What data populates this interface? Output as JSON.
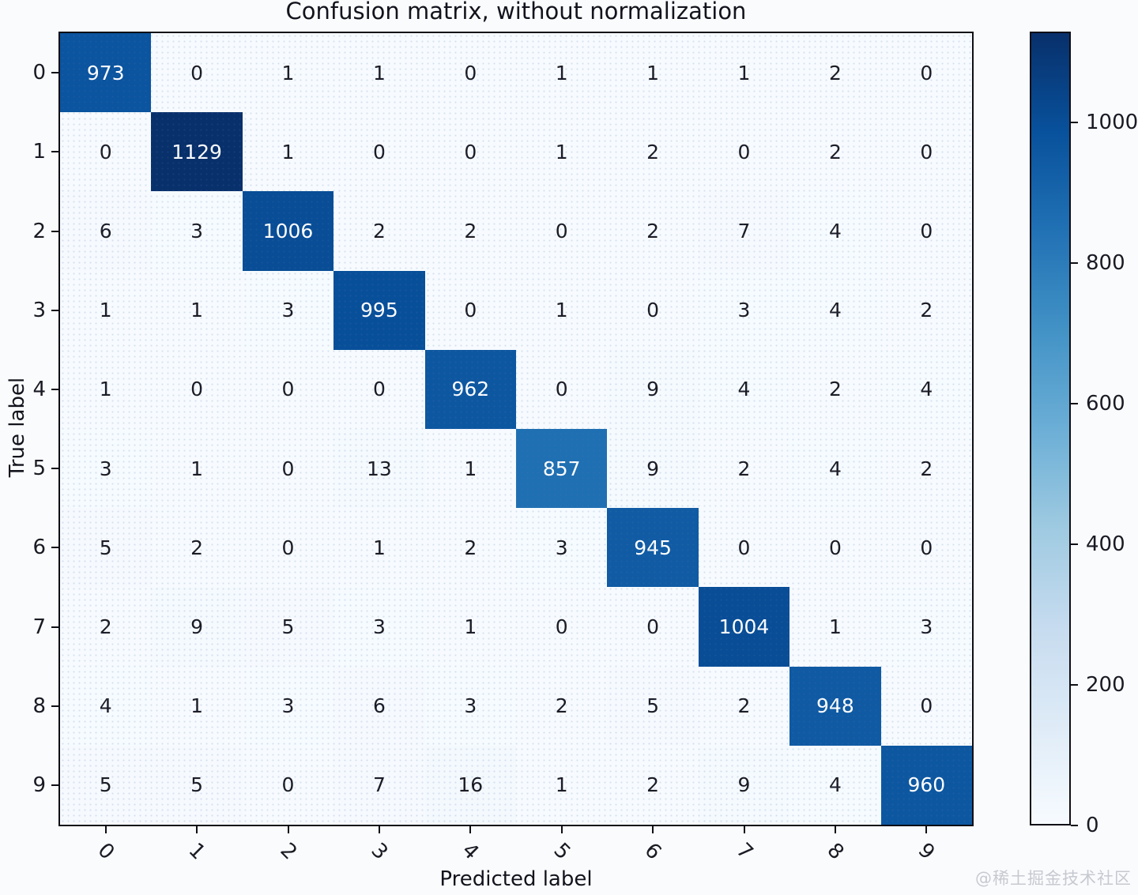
{
  "figure": {
    "watermark": "@稀土掘金技术社区"
  },
  "chart_data": {
    "type": "heatmap",
    "title": "Confusion matrix, without normalization",
    "xlabel": "Predicted label",
    "ylabel": "True label",
    "x_tick_labels": [
      "0",
      "1",
      "2",
      "3",
      "4",
      "5",
      "6",
      "7",
      "8",
      "9"
    ],
    "y_tick_labels": [
      "0",
      "1",
      "2",
      "3",
      "4",
      "5",
      "6",
      "7",
      "8",
      "9"
    ],
    "matrix": [
      [
        973,
        0,
        1,
        1,
        0,
        1,
        1,
        1,
        2,
        0
      ],
      [
        0,
        1129,
        1,
        0,
        0,
        1,
        2,
        0,
        2,
        0
      ],
      [
        6,
        3,
        1006,
        2,
        2,
        0,
        2,
        7,
        4,
        0
      ],
      [
        1,
        1,
        3,
        995,
        0,
        1,
        0,
        3,
        4,
        2
      ],
      [
        1,
        0,
        0,
        0,
        962,
        0,
        9,
        4,
        2,
        4
      ],
      [
        3,
        1,
        0,
        13,
        1,
        857,
        9,
        2,
        4,
        2
      ],
      [
        5,
        2,
        0,
        1,
        2,
        3,
        945,
        0,
        0,
        0
      ],
      [
        2,
        9,
        5,
        3,
        1,
        0,
        0,
        1004,
        1,
        3
      ],
      [
        4,
        1,
        3,
        6,
        3,
        2,
        5,
        2,
        948,
        0
      ],
      [
        5,
        5,
        0,
        7,
        16,
        1,
        2,
        9,
        4,
        960
      ]
    ],
    "vmin": 0,
    "vmax": 1129,
    "colormap": "Blues",
    "colormap_stops": [
      [
        0.0,
        "#f7fbff"
      ],
      [
        0.125,
        "#deebf7"
      ],
      [
        0.25,
        "#c6dbef"
      ],
      [
        0.375,
        "#9ecae1"
      ],
      [
        0.5,
        "#6baed6"
      ],
      [
        0.625,
        "#4292c6"
      ],
      [
        0.75,
        "#2171b5"
      ],
      [
        0.875,
        "#08519c"
      ],
      [
        1.0,
        "#08306b"
      ]
    ],
    "colorbar_ticks": [
      0,
      200,
      400,
      600,
      800,
      1000
    ],
    "legend_position": "colorbar-right",
    "grid": false,
    "cell_text_threshold": 564.5,
    "cell_text_color_above": "#ffffff",
    "cell_text_color_below": "#1b1b25"
  },
  "colors": {
    "figure_background": "#fafbfd",
    "spine": "#0e0e16",
    "tick_label": "#1a1a24",
    "watermark": "#c6c9d0"
  }
}
